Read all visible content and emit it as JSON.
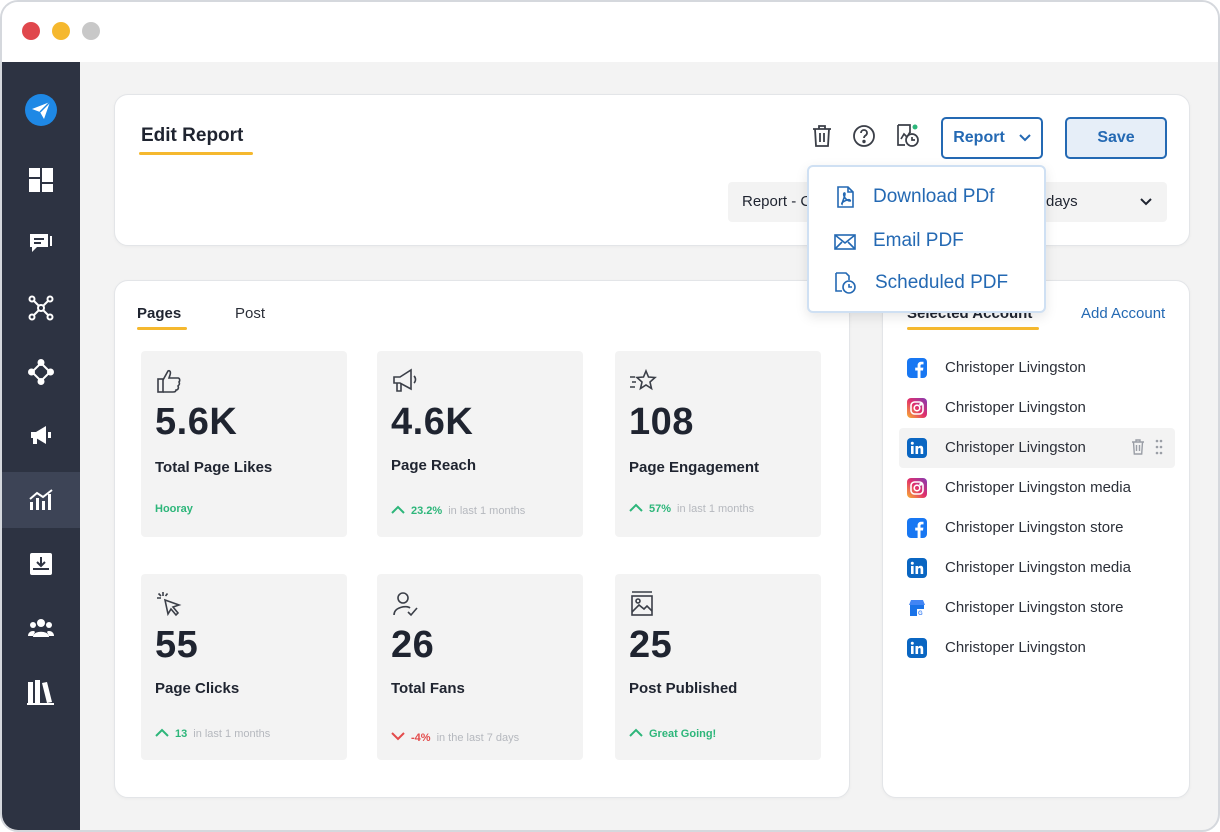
{
  "window": {
    "controls": [
      "close",
      "minimize",
      "maximize"
    ]
  },
  "sidebar": {
    "items": [
      {
        "icon": "send-logo-icon",
        "active": false
      },
      {
        "icon": "dashboard-icon",
        "active": false
      },
      {
        "icon": "inbox-messages-icon",
        "active": false
      },
      {
        "icon": "network-icon",
        "active": false
      },
      {
        "icon": "workflow-icon",
        "active": false
      },
      {
        "icon": "megaphone-icon",
        "active": false
      },
      {
        "icon": "analytics-icon",
        "active": true
      },
      {
        "icon": "download-tray-icon",
        "active": false
      },
      {
        "icon": "team-icon",
        "active": false
      },
      {
        "icon": "library-icon",
        "active": false
      }
    ]
  },
  "header": {
    "title": "Edit Report",
    "report_label": "Report",
    "save_label": "Save",
    "icons": [
      "trash-icon",
      "help-icon",
      "schedule-report-icon"
    ],
    "select_left": "Report - C",
    "select_right": "days"
  },
  "dropdown": {
    "items": [
      {
        "label": "Download PDf",
        "icon": "pdf-file-icon"
      },
      {
        "label": "Email PDF",
        "icon": "envelope-icon"
      },
      {
        "label": "Scheduled PDF",
        "icon": "scheduled-file-icon"
      }
    ]
  },
  "main": {
    "tabs": [
      {
        "label": "Pages",
        "active": true
      },
      {
        "label": "Post",
        "active": false
      }
    ],
    "stats": [
      {
        "value": "5.6K",
        "label": "Total Page Likes",
        "icon": "thumbs-up-icon",
        "trend_text": "Hooray",
        "trend_dir": "none"
      },
      {
        "value": "4.6K",
        "label": "Page Reach",
        "icon": "megaphone-icon",
        "trend_value": "23.2%",
        "trend_text": "in last 1 months",
        "trend_dir": "up"
      },
      {
        "value": "108",
        "label": "Page Engagement",
        "icon": "star-sparkle-icon",
        "trend_value": "57%",
        "trend_text": "in last 1 months",
        "trend_dir": "up"
      },
      {
        "value": "55",
        "label": "Page Clicks",
        "icon": "cursor-click-icon",
        "trend_value": "13",
        "trend_text": "in last 1 months",
        "trend_dir": "up"
      },
      {
        "value": "26",
        "label": "Total Fans",
        "icon": "user-check-icon",
        "trend_value": "-4%",
        "trend_text": "in the last 7 days",
        "trend_dir": "down"
      },
      {
        "value": "25",
        "label": "Post Published",
        "icon": "image-post-icon",
        "trend_text": "Great Going!",
        "trend_dir": "none"
      }
    ]
  },
  "accounts": {
    "title": "Selected Account",
    "add_label": "Add Account",
    "list": [
      {
        "name": "Christoper Livingston",
        "network": "facebook"
      },
      {
        "name": "Christoper Livingston",
        "network": "instagram"
      },
      {
        "name": "Christoper Livingston",
        "network": "linkedin",
        "highlighted": true
      },
      {
        "name": "Christoper Livingston media",
        "network": "instagram"
      },
      {
        "name": "Christoper Livingston store",
        "network": "facebook"
      },
      {
        "name": "Christoper Livingston media",
        "network": "linkedin"
      },
      {
        "name": "Christoper Livingston store",
        "network": "google-business"
      },
      {
        "name": "Christoper Livingston",
        "network": "linkedin"
      }
    ]
  },
  "colors": {
    "accent": "#2469b3",
    "highlight": "#f5b82e",
    "sidebar": "#2d3342",
    "positive": "#2db67a",
    "negative": "#e34b4b"
  }
}
